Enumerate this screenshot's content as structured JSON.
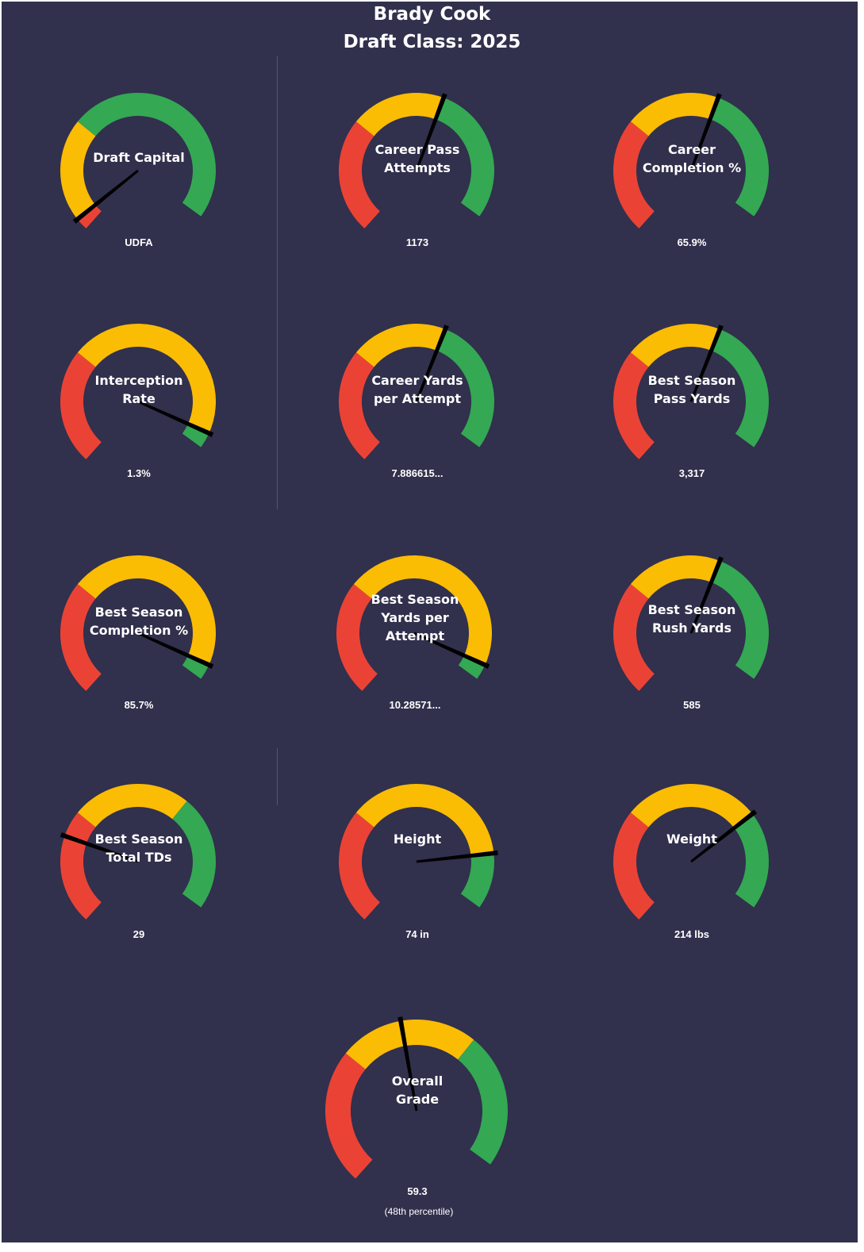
{
  "header": {
    "player_name": "Brady Cook",
    "draft_class": "Draft Class: 2025"
  },
  "colors": {
    "background": "#31304d",
    "low_band": "#ea4335",
    "mid_band": "#fbbc04",
    "high_band": "#34a853",
    "needle": "#000000",
    "text": "#ffffff"
  },
  "chart_data": {
    "type": "gauge",
    "scale": {
      "min": 0,
      "max": 100,
      "low_to_mid": 33,
      "mid_to_high": 67
    },
    "gauges": [
      {
        "id": "draft-capital",
        "label": [
          "Draft Capital"
        ],
        "value_text": "UDFA",
        "score": 3.5,
        "green_extent": 4
      },
      {
        "id": "career-pass-attempts",
        "label": [
          "Career Pass",
          "Attempts"
        ],
        "value_text": "1173",
        "score": 60,
        "green_extent": 60
      },
      {
        "id": "career-completion-pct",
        "label": [
          "Career",
          "Completion %"
        ],
        "value_text": "65.9%",
        "score": 60,
        "green_extent": 60
      },
      {
        "id": "interception-rate",
        "label": [
          "Interception",
          "Rate"
        ],
        "value_text": "1.3%",
        "score": 95.5,
        "green_extent": 96
      },
      {
        "id": "career-yards-per-attempt",
        "label": [
          "Career Yards",
          "per Attempt"
        ],
        "value_text": "7.886615...",
        "score": 60.5,
        "green_extent": 60.5
      },
      {
        "id": "best-season-pass-yards",
        "label": [
          "Best Season",
          "Pass Yards"
        ],
        "value_text": "3,317",
        "score": 60.5,
        "green_extent": 60.5
      },
      {
        "id": "best-season-completion-pct",
        "label": [
          "Best Season",
          "Completion %"
        ],
        "value_text": "85.7%",
        "score": 95.5,
        "green_extent": 96
      },
      {
        "id": "best-season-yards-per-attempt",
        "label": [
          "Best Season",
          "Yards per",
          "Attempt"
        ],
        "value_text": "10.28571...",
        "score": 95.5,
        "green_extent": 96
      },
      {
        "id": "best-season-rush-yards",
        "label": [
          "Best Season",
          "Rush Yards"
        ],
        "value_text": "585",
        "score": 60.5,
        "green_extent": 60.5
      },
      {
        "id": "best-season-total-tds",
        "label": [
          "Best Season",
          "Total TDs"
        ],
        "value_text": "29",
        "score": 25.5,
        "green_extent": 67
      },
      {
        "id": "height",
        "label": [
          "Height"
        ],
        "value_text": "74 in",
        "score": 84,
        "green_extent": 84
      },
      {
        "id": "weight",
        "label": [
          "Weight"
        ],
        "value_text": "214 lbs",
        "score": 72,
        "green_extent": 72
      },
      {
        "id": "overall-grade",
        "label": [
          "Overall",
          "Grade"
        ],
        "value_text": "59.3",
        "sub_text": "(48th  percentile)",
        "score": 48.5,
        "green_extent": 67
      }
    ]
  }
}
